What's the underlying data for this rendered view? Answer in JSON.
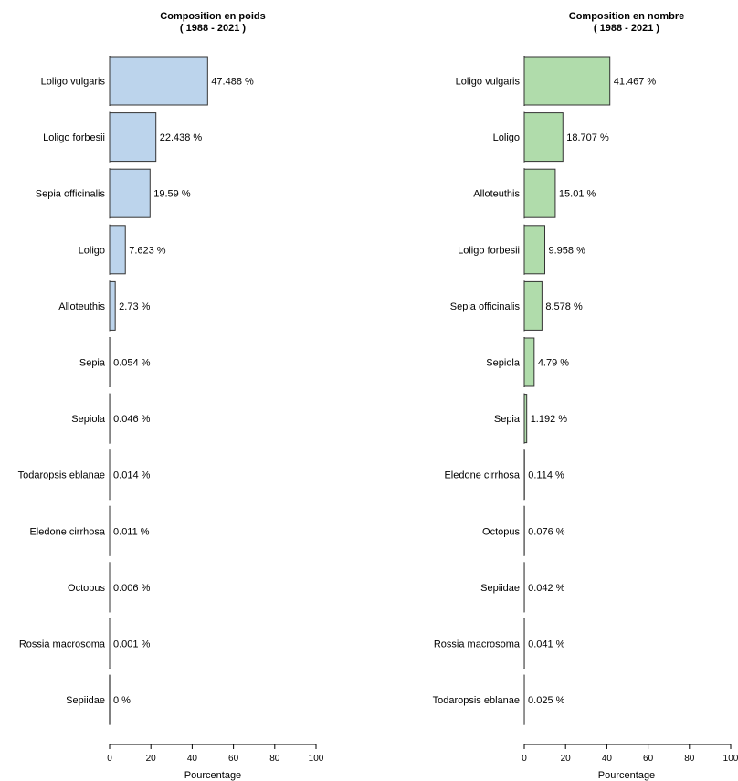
{
  "chart_data": [
    {
      "type": "bar",
      "orientation": "horizontal",
      "title": "Composition en poids",
      "subtitle": "( 1988 - 2021 )",
      "xlabel": "Pourcentage",
      "ylabel": "",
      "xlim": [
        0,
        100
      ],
      "xticks": [
        "0",
        "20",
        "40",
        "60",
        "80",
        "100"
      ],
      "bar_color": "#bcd4ec",
      "categories": [
        "Loligo vulgaris",
        "Loligo forbesii",
        "Sepia officinalis",
        "Loligo",
        "Alloteuthis",
        "Sepia",
        "Sepiola",
        "Todaropsis eblanae",
        "Eledone cirrhosa",
        "Octopus",
        "Rossia macrosoma",
        "Sepiidae"
      ],
      "values": [
        47.488,
        22.438,
        19.59,
        7.623,
        2.73,
        0.054,
        0.046,
        0.014,
        0.011,
        0.006,
        0.001,
        0
      ],
      "value_labels": [
        "47.488 %",
        "22.438 %",
        "19.59 %",
        "7.623 %",
        "2.73 %",
        "0.054 %",
        "0.046 %",
        "0.014 %",
        "0.011 %",
        "0.006 %",
        "0.001 %",
        "0 %"
      ],
      "grid": false
    },
    {
      "type": "bar",
      "orientation": "horizontal",
      "title": "Composition en nombre",
      "subtitle": "( 1988 - 2021 )",
      "xlabel": "Pourcentage",
      "ylabel": "",
      "xlim": [
        0,
        100
      ],
      "xticks": [
        "0",
        "20",
        "40",
        "60",
        "80",
        "100"
      ],
      "bar_color": "#b0dcab",
      "categories": [
        "Loligo vulgaris",
        "Loligo",
        "Alloteuthis",
        "Loligo forbesii",
        "Sepia officinalis",
        "Sepiola",
        "Sepia",
        "Eledone cirrhosa",
        "Octopus",
        "Sepiidae",
        "Rossia macrosoma",
        "Todaropsis eblanae"
      ],
      "values": [
        41.467,
        18.707,
        15.01,
        9.958,
        8.578,
        4.79,
        1.192,
        0.114,
        0.076,
        0.042,
        0.041,
        0.025
      ],
      "value_labels": [
        "41.467 %",
        "18.707 %",
        "15.01 %",
        "9.958 %",
        "8.578 %",
        "4.79 %",
        "1.192 %",
        "0.114 %",
        "0.076 %",
        "0.042 %",
        "0.041 %",
        "0.025 %"
      ],
      "grid": false
    }
  ]
}
